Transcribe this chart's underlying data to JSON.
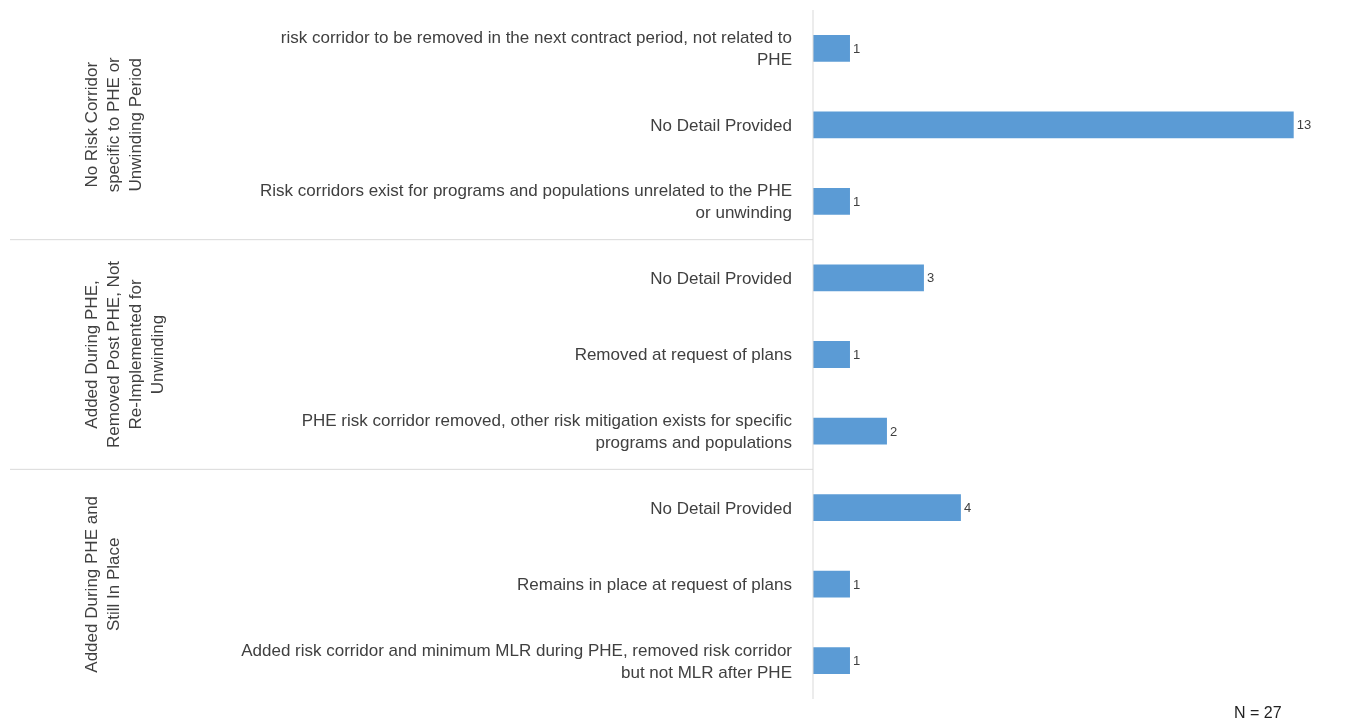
{
  "chart_data": {
    "type": "bar",
    "orientation": "horizontal",
    "data_labels": true,
    "tick_labels": "y",
    "categories": [
      "risk corridor to be removed in the next contract period, not related to PHE",
      "No Detail Provided",
      "Risk corridors exist for programs and populations unrelated to the PHE or unwinding",
      "No Detail Provided",
      "Removed at request of plans",
      "PHE risk corridor removed, other risk mitigation exists for specific programs and populations",
      "No Detail Provided",
      "Remains in place at request of plans",
      "Added risk corridor and minimum MLR during PHE, removed risk corridor but not MLR after PHE"
    ],
    "values": [
      1,
      13,
      1,
      3,
      1,
      2,
      4,
      1,
      1
    ],
    "color": "#5b9bd5",
    "annotations": [
      "No Risk Corridor specific to PHE or Unwinding Period",
      "Added During PHE, Removed Post PHE, Not Re-Implemented for Unwinding",
      "Added During PHE and Still In Place",
      "N = 27"
    ]
  }
}
